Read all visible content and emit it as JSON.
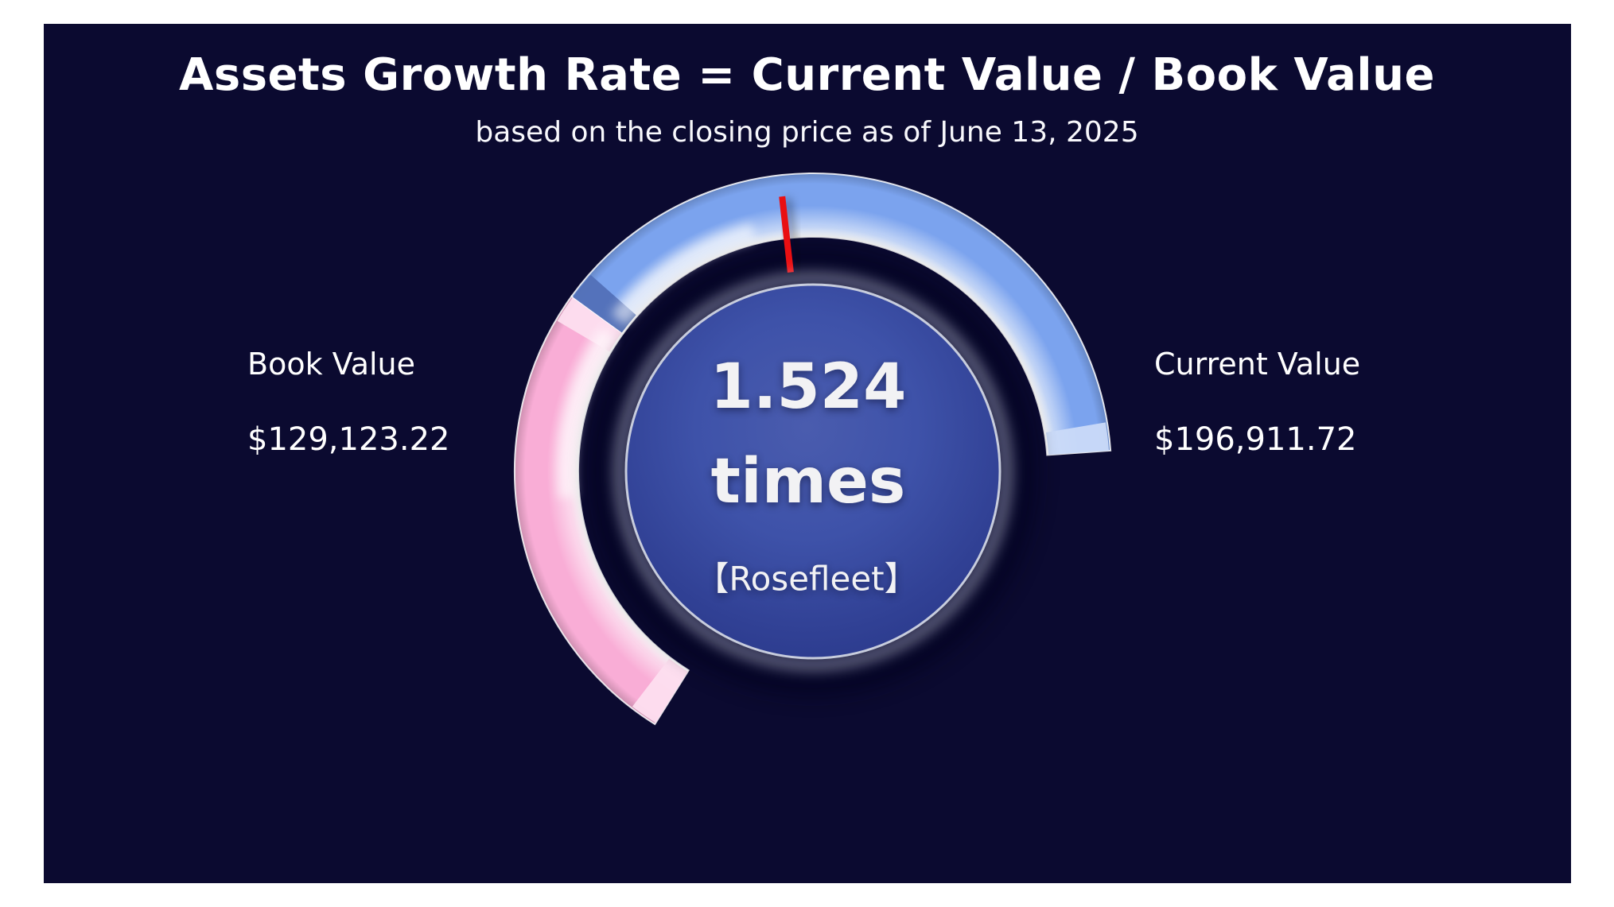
{
  "header": {
    "title": "Assets Growth Rate = Current Value / Book Value",
    "subtitle": "based on the closing price as of June 13, 2025"
  },
  "left_stat": {
    "label": "Book Value",
    "value": "$129,123.22"
  },
  "right_stat": {
    "label": "Current Value",
    "value": "$196,911.72"
  },
  "gauge_center": {
    "value": "1.524",
    "unit": "times",
    "entity": "【Rosefleet】"
  },
  "chart_data": {
    "type": "gauge",
    "title": "Assets Growth Rate = Current Value / Book Value",
    "subtitle": "based on the closing price as of June 13, 2025",
    "value": 1.524,
    "unit": "times",
    "entity": "Rosefleet",
    "metrics": [
      {
        "label": "Book Value",
        "value": 129123.22,
        "display": "$129,123.22",
        "color": "#f9add6",
        "side": "left"
      },
      {
        "label": "Current Value",
        "value": 196911.72,
        "display": "$196,911.72",
        "color": "#7ba3ee",
        "side": "right"
      }
    ],
    "segments": [
      {
        "name": "book-value-arc",
        "color": "#f9add6",
        "start_deg": 144,
        "end_deg": 238,
        "start_cap": "light",
        "end_cap": "light"
      },
      {
        "name": "current-value-arc",
        "color": "#7ba3ee",
        "start_deg": 4,
        "end_deg": 144,
        "start_cap": "light",
        "end_cap": "dark"
      }
    ],
    "needle": {
      "angle_deg": 96.4,
      "color": "#e90f12"
    },
    "disc": {
      "center_color": "#3e52a9",
      "edge_color": "#2b3a8c",
      "rim_color": "#c8cddd",
      "text_color": "#f2f2f4"
    },
    "background": "#0b0a30",
    "angle_convention": "degrees CCW from 3 o'clock",
    "grid": false,
    "legend_position": "sides"
  }
}
